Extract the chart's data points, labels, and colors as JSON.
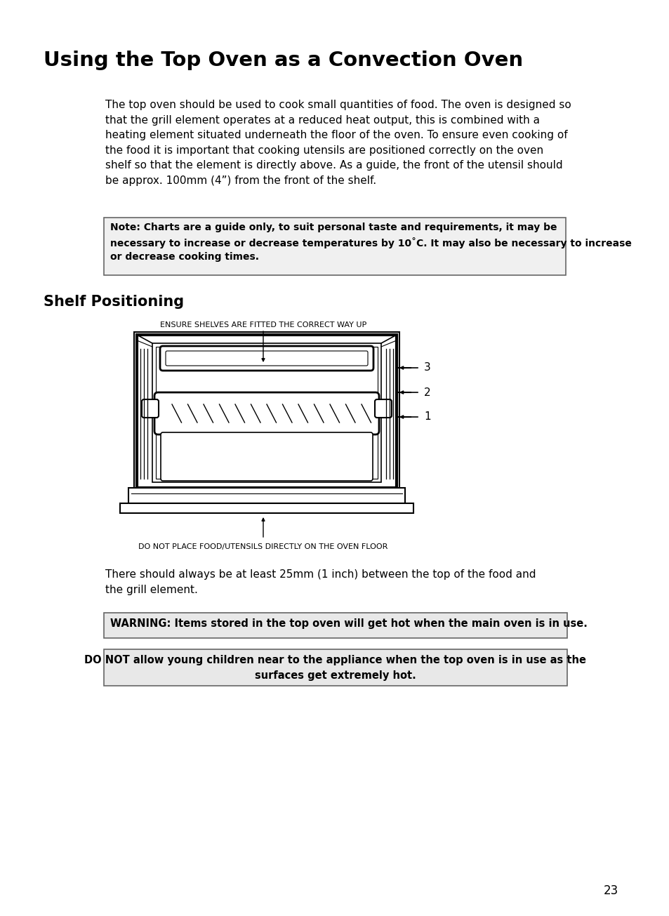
{
  "title": "Using the Top Oven as a Convection Oven",
  "body_text": "The top oven should be used to cook small quantities of food. The oven is designed so\nthat the grill element operates at a reduced heat output, this is combined with a\nheating element situated underneath the floor of the oven. To ensure even cooking of\nthe food it is important that cooking utensils are positioned correctly on the oven\nshelf so that the element is directly above. As a guide, the front of the utensil should\nbe approx. 100mm (4”) from the front of the shelf.",
  "note_text": "Note: Charts are a guide only, to suit personal taste and requirements, it may be\nnecessary to increase or decrease temperatures by 10˚C. It may also be necessary to increase\nor decrease cooking times.",
  "shelf_heading": "Shelf Positioning",
  "diagram_top_label": "ENSURE SHELVES ARE FITTED THE CORRECT WAY UP",
  "diagram_bottom_label": "DO NOT PLACE FOOD/UTENSILS DIRECTLY ON THE OVEN FLOOR",
  "shelf_labels": [
    "3",
    "2",
    "1"
  ],
  "spacing_text": "There should always be at least 25mm (1 inch) between the top of the food and\nthe grill element.",
  "warning1": "WARNING: Items stored in the top oven will get hot when the main oven is in use.",
  "warning2": "DO NOT allow young children near to the appliance when the top oven is in use as the\nsurfaces get extremely hot.",
  "page_number": "23",
  "bg_color": "#ffffff",
  "text_color": "#000000"
}
